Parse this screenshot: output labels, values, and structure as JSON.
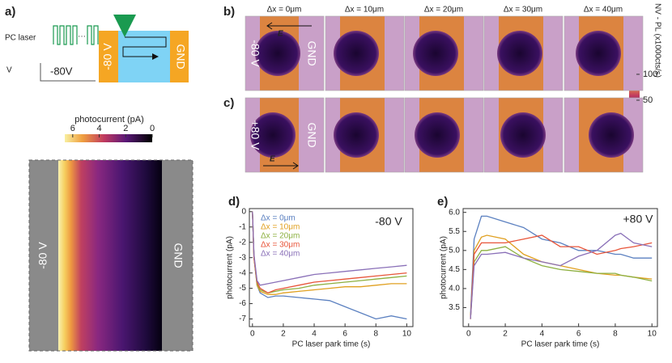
{
  "panel_labels": [
    "a)",
    "b)",
    "c)",
    "d)",
    "e)"
  ],
  "schematic": {
    "laser": "PC laser",
    "dots": "···",
    "voltage_label": "V",
    "voltage": "-80V",
    "left_electrode": "-80 V",
    "right_electrode": "GND"
  },
  "heatmap": {
    "left_electrode": "-80 V",
    "right_electrode": "GND",
    "colorbar": {
      "label": "photocurrent (pA)",
      "lim": [
        6.6,
        0
      ],
      "ticks": [
        6,
        4,
        2,
        0
      ]
    }
  },
  "pl_maps": {
    "columns": [
      "Δx = 0μm",
      "Δx = 10μm",
      "Δx = 20μm",
      "Δx = 30μm",
      "Δx = 40μm"
    ],
    "row_b_bias": "-80 V",
    "row_c_bias": "+80 V",
    "electrode": "GND",
    "field": "E",
    "colorbar": {
      "label": "NV - PL (x1000cts/s)",
      "lim": [
        14,
        103
      ],
      "ticks": [
        100,
        50
      ]
    }
  },
  "chart_data": [
    {
      "type": "line",
      "annotation": "-80 V",
      "xlabel": "PC laser park time (s)",
      "ylabel": "photocurrent (pA)",
      "xlim": [
        -0.2,
        10.4
      ],
      "xticks": [
        0,
        2,
        4,
        6,
        8,
        10
      ],
      "ylim": [
        -7.5,
        0.2
      ],
      "yticks": [
        0,
        -1,
        -2,
        -3,
        -4,
        -5,
        -6,
        -7
      ],
      "x": [
        0,
        0.1,
        0.3,
        0.5,
        1,
        1.5,
        2,
        3,
        4,
        5,
        6,
        7,
        8,
        9,
        10
      ],
      "series": [
        {
          "name": "Δx = 0μm",
          "color": "#5b80c0",
          "values": [
            0,
            -3,
            -4.8,
            -5.3,
            -5.6,
            -5.5,
            -5.5,
            -5.6,
            -5.7,
            -5.8,
            -6.2,
            -6.6,
            -7.0,
            -6.8,
            -7.0
          ]
        },
        {
          "name": "Δx = 10μm",
          "color": "#e0a020",
          "values": [
            0,
            -3,
            -4.8,
            -5.2,
            -5.4,
            -5.4,
            -5.3,
            -5.2,
            -5.1,
            -5.0,
            -4.9,
            -4.9,
            -4.8,
            -4.7,
            -4.7
          ]
        },
        {
          "name": "Δx = 20μm",
          "color": "#8db040",
          "values": [
            0,
            -3,
            -4.7,
            -5.1,
            -5.3,
            -5.2,
            -5.1,
            -5.0,
            -4.8,
            -4.7,
            -4.6,
            -4.5,
            -4.4,
            -4.3,
            -4.2
          ]
        },
        {
          "name": "Δx = 30μm",
          "color": "#e8553a",
          "values": [
            0,
            -3,
            -4.6,
            -5.0,
            -5.3,
            -5.1,
            -5.0,
            -4.8,
            -4.6,
            -4.5,
            -4.4,
            -4.3,
            -4.2,
            -4.1,
            -4.0
          ]
        },
        {
          "name": "Δx = 40μm",
          "color": "#8a70b8",
          "values": [
            0,
            -2.8,
            -4.5,
            -4.8,
            -4.7,
            -4.6,
            -4.5,
            -4.3,
            -4.1,
            -4.0,
            -3.9,
            -3.8,
            -3.7,
            -3.6,
            -3.5
          ]
        }
      ]
    },
    {
      "type": "line",
      "annotation": "+80 V",
      "xlabel": "PC laser park time (s)",
      "ylabel": "photocurrent (pA)",
      "xlim": [
        -0.3,
        10.3
      ],
      "xticks": [
        0,
        2,
        4,
        6,
        8,
        10
      ],
      "ylim": [
        3.0,
        6.1
      ],
      "yticks": [
        3.5,
        {
          "value": 4,
          "label": "4.0"
        },
        4.5,
        {
          "value": 5,
          "label": "5.0"
        },
        5.5,
        {
          "value": 6,
          "label": "6.0"
        }
      ],
      "x": [
        0.1,
        0.3,
        0.7,
        1,
        2,
        3,
        4,
        5,
        6,
        7,
        8,
        8.3,
        9,
        10
      ],
      "series": [
        {
          "color": "#5b80c0",
          "values": [
            3.3,
            5.3,
            5.9,
            5.9,
            5.75,
            5.6,
            5.3,
            5.2,
            5.0,
            5.0,
            4.9,
            4.9,
            4.8,
            4.8
          ]
        },
        {
          "color": "#e0a020",
          "values": [
            3.2,
            5.0,
            5.35,
            5.4,
            5.3,
            4.9,
            4.7,
            4.6,
            4.5,
            4.4,
            4.35,
            4.35,
            4.3,
            4.25
          ]
        },
        {
          "color": "#8db040",
          "values": [
            3.2,
            4.7,
            5.0,
            5.0,
            5.1,
            4.8,
            4.6,
            4.5,
            4.45,
            4.4,
            4.4,
            4.35,
            4.3,
            4.2
          ]
        },
        {
          "color": "#e8553a",
          "values": [
            3.2,
            4.9,
            5.2,
            5.2,
            5.2,
            5.3,
            5.4,
            5.1,
            5.1,
            4.9,
            5.0,
            5.05,
            5.1,
            5.2
          ]
        },
        {
          "color": "#8a70b8",
          "values": [
            3.2,
            4.6,
            4.9,
            4.9,
            4.95,
            4.8,
            4.7,
            4.6,
            4.85,
            5.0,
            5.4,
            5.45,
            5.2,
            5.1
          ]
        }
      ]
    }
  ]
}
